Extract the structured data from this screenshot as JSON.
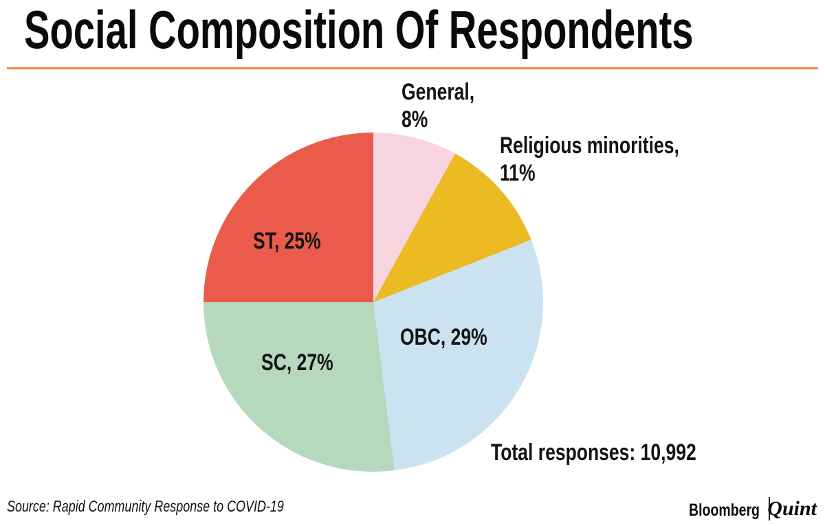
{
  "header": {
    "accent_color": "#f0883a"
  },
  "chart_data": {
    "type": "pie",
    "title": "Social Composition Of Respondents",
    "total_annotation": "Total responses: 10,992",
    "start_angle_deg": 0,
    "direction": "clockwise",
    "legend": "none",
    "labels_on_chart": true,
    "slices": [
      {
        "label": "General",
        "value_pct": 8,
        "color": "#f8d4de",
        "label_placement": "outside"
      },
      {
        "label": "Religious minorities",
        "value_pct": 11,
        "color": "#ecba23",
        "label_placement": "outside"
      },
      {
        "label": "OBC",
        "value_pct": 29,
        "color": "#cbe3f0",
        "label_placement": "inside"
      },
      {
        "label": "SC",
        "value_pct": 27,
        "color": "#b6d8bd",
        "label_placement": "inside"
      },
      {
        "label": "ST",
        "value_pct": 25,
        "color": "#ea5b4b",
        "label_placement": "inside"
      }
    ]
  },
  "footer": {
    "source": "Source: Rapid Community Response to COVID-19",
    "brand_left": "Bloomberg",
    "brand_right": "Quint"
  }
}
